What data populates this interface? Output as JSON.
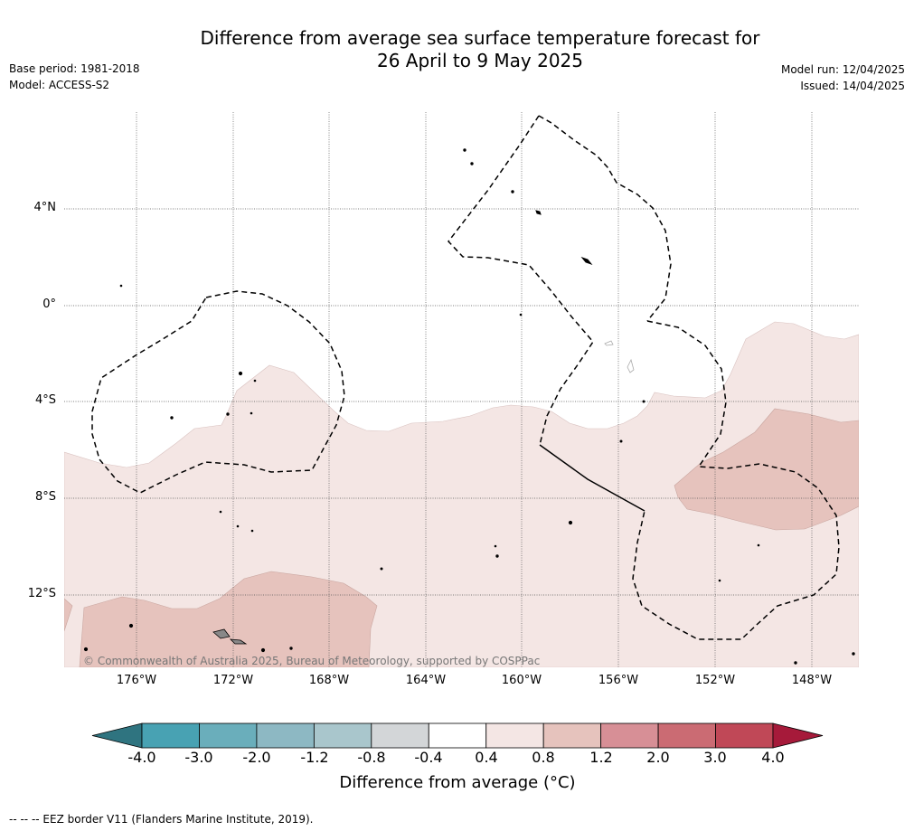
{
  "title_line1": "Difference from average sea surface temperature forecast for",
  "title_line2": "26 April to 9 May 2025",
  "base_period": "Base period: 1981-2018",
  "model": "Model: ACCESS-S2",
  "model_run": "Model run: 12/04/2025",
  "issued": "Issued: 14/04/2025",
  "lat_labels": [
    "4°N",
    "0°",
    "4°S",
    "8°S",
    "12°S"
  ],
  "lon_labels": [
    "176°W",
    "172°W",
    "168°W",
    "164°W",
    "160°W",
    "156°W",
    "152°W",
    "148°W"
  ],
  "copyright": "© Commonwealth of Australia 2025, Bureau of Meteorology, supported by COSPPac",
  "colorbar": {
    "labels": [
      "-4.0",
      "-3.0",
      "-2.0",
      "-1.2",
      "-0.8",
      "-0.4",
      "0.4",
      "0.8",
      "1.2",
      "2.0",
      "3.0",
      "4.0"
    ],
    "colors": [
      "#2f7480",
      "#48a2b3",
      "#6aaebb",
      "#8db8c3",
      "#a9c6cc",
      "#d3d6d8",
      "#ffffff",
      "#f4e6e4",
      "#e6c3bd",
      "#d78f96",
      "#cb6b73",
      "#c04857",
      "#a61a3a"
    ],
    "title": "Difference from average (°C)"
  },
  "footer": "--  --  -- EEZ border V11 (Flanders Marine Institute, 2019)."
}
